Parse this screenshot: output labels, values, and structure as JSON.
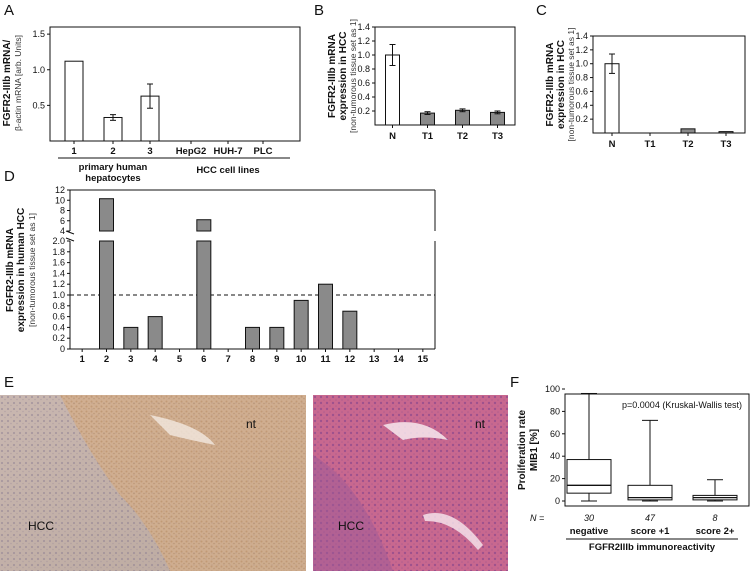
{
  "panels": {
    "A": "A",
    "B": "B",
    "C": "C",
    "D": "D",
    "E": "E",
    "F": "F"
  },
  "colors": {
    "gray_bar": "#8a8a8a",
    "white_bar": "#ffffff",
    "stroke": "#111111"
  },
  "chart_data": [
    {
      "id": "A",
      "type": "bar",
      "ylabel_line1": "FGFR2-IIIb mRNA/",
      "ylabel_line2": "β-actin mRNA [arb. Units]",
      "categories": [
        "1",
        "2",
        "3",
        "HepG2",
        "HUH-7",
        "PLC"
      ],
      "values": [
        1.12,
        0.33,
        0.63,
        0,
        0,
        0
      ],
      "errors": [
        0,
        0.04,
        0.17,
        0,
        0,
        0
      ],
      "yticks": [
        "0.5",
        "1.0",
        "1.5"
      ],
      "ylim": [
        0,
        1.6
      ],
      "groups": [
        "primary human",
        "hepatocytes",
        "HCC cell lines"
      ]
    },
    {
      "id": "B",
      "type": "bar",
      "ylabel_line1": "FGFR2-IIIb mRNA",
      "ylabel_line2": "expression in HCC",
      "ylabel_line3": "[non-tumorous tissue set as 1]",
      "categories": [
        "N",
        "T1",
        "T2",
        "T3"
      ],
      "values": [
        1.0,
        0.17,
        0.21,
        0.18
      ],
      "errors": [
        0.15,
        0.02,
        0.02,
        0.02
      ],
      "yticks": [
        "0.2",
        "0.4",
        "0.6",
        "0.8",
        "1.0",
        "1.2",
        "1.4"
      ],
      "ylim": [
        0,
        1.4
      ]
    },
    {
      "id": "C",
      "type": "bar",
      "ylabel_line1": "FGFR2-IIIb mRNA",
      "ylabel_line2": "expression in HCC",
      "ylabel_line3": "[non-tumorous tissue set as 1]",
      "categories": [
        "N",
        "T1",
        "T2",
        "T3"
      ],
      "values": [
        1.0,
        0.0,
        0.06,
        0.02
      ],
      "errors": [
        0.14,
        0,
        0,
        0
      ],
      "yticks": [
        "0.2",
        "0.4",
        "0.6",
        "0.8",
        "1.0",
        "1.2",
        "1.4"
      ],
      "ylim": [
        0,
        1.4
      ]
    },
    {
      "id": "D",
      "type": "bar",
      "ylabel_line1": "FGFR2-IIIb mRNA",
      "ylabel_line2": "expression in human HCC",
      "ylabel_line3": "[non-tumorous tissue set as 1]",
      "categories": [
        "1",
        "2",
        "3",
        "4",
        "5",
        "6",
        "7",
        "8",
        "9",
        "10",
        "11",
        "12",
        "13",
        "14",
        "15"
      ],
      "values": [
        0,
        10.3,
        0.4,
        0.6,
        0,
        6.2,
        0,
        0.4,
        0.4,
        0.9,
        1.2,
        0.7,
        0,
        0,
        0
      ],
      "yticks_low": [
        "0",
        "0.2",
        "0.4",
        "0.6",
        "0.8",
        "1.0",
        "1.2",
        "1.4",
        "1.6",
        "1.8",
        "2.0"
      ],
      "yticks_high": [
        "4",
        "6",
        "8",
        "10",
        "12"
      ],
      "reference_line": 1.0
    },
    {
      "id": "F",
      "type": "box",
      "ylabel_line1": "Proliferation rate",
      "ylabel_line2": "MIB1 [%]",
      "annotation": "p=0.0004 (Kruskal-Wallis test)",
      "categories": [
        "negative",
        "score +1",
        "score 2+"
      ],
      "n_label": "N =",
      "n": [
        "30",
        "47",
        "8"
      ],
      "boxes": [
        {
          "min": 0,
          "q1": 7,
          "median": 14,
          "q3": 37,
          "max": 96
        },
        {
          "min": 0,
          "q1": 1,
          "median": 3,
          "q3": 14,
          "max": 72
        },
        {
          "min": 0,
          "q1": 1,
          "median": 3,
          "q3": 5,
          "max": 19
        }
      ],
      "yticks": [
        "0",
        "20",
        "40",
        "60",
        "80",
        "100"
      ],
      "ylim": [
        0,
        100
      ],
      "xlabel": "FGFR2IIIb immunoreactivity"
    }
  ],
  "images": {
    "left_labels": [
      "nt",
      "HCC"
    ],
    "right_labels": [
      "nt",
      "HCC"
    ]
  }
}
